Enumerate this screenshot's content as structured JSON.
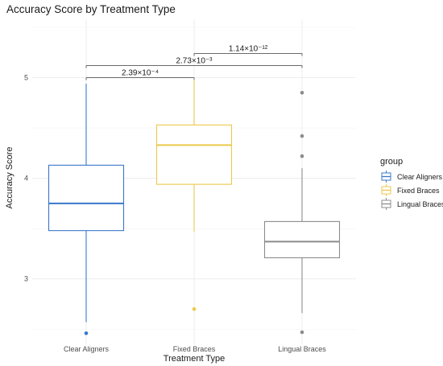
{
  "chart_data": {
    "type": "box",
    "title": "Accuracy Score by Treatment Type",
    "xlabel": "Treatment Type",
    "ylabel": "Accuracy Score",
    "categories": [
      "Clear Aligners",
      "Fixed Braces",
      "Lingual Braces"
    ],
    "ylim": [
      2.35,
      5.58
    ],
    "yticks": [
      3,
      4,
      5
    ],
    "grid": true,
    "legend": {
      "title": "group",
      "position": "right",
      "entries": [
        "Clear Aligners",
        "Fixed Braces",
        "Lingual Braces"
      ]
    },
    "colors": {
      "Clear Aligners": "#3a78c9",
      "Fixed Braces": "#ecc94b",
      "Lingual Braces": "#8c8c8c"
    },
    "boxes": [
      {
        "group": "Clear Aligners",
        "whisker_low": 2.57,
        "q1": 3.48,
        "median": 3.75,
        "q3": 4.13,
        "whisker_high": 4.94,
        "outliers": [
          2.46
        ]
      },
      {
        "group": "Fixed Braces",
        "whisker_low": 3.47,
        "q1": 3.94,
        "median": 4.33,
        "q3": 4.53,
        "whisker_high": 4.98,
        "outliers": [
          2.7
        ]
      },
      {
        "group": "Lingual Braces",
        "whisker_low": 2.66,
        "q1": 3.21,
        "median": 3.37,
        "q3": 3.57,
        "whisker_high": 4.1,
        "outliers": [
          4.85,
          4.42,
          4.22,
          2.47
        ]
      }
    ],
    "comparisons": [
      {
        "from": "Clear Aligners",
        "to": "Fixed Braces",
        "y": 5.0,
        "label": "2.39×10⁻⁴"
      },
      {
        "from": "Clear Aligners",
        "to": "Lingual Braces",
        "y": 5.12,
        "label": "2.73×10⁻³"
      },
      {
        "from": "Fixed Braces",
        "to": "Lingual Braces",
        "y": 5.24,
        "label": "1.14×10⁻¹²"
      }
    ]
  }
}
